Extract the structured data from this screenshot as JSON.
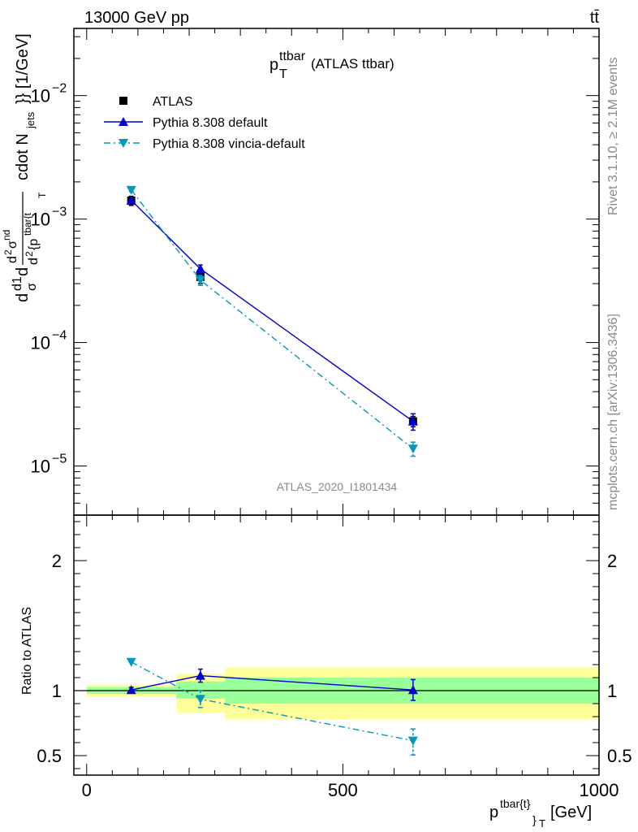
{
  "header": {
    "left": "13000 GeV pp",
    "right": "tt̄"
  },
  "side_text": {
    "rivet": "Rivet 3.1.10, ≥ 2.1M events",
    "mcplots": "mcplots.cern.ch [arXiv:1306.3436]"
  },
  "watermark": "ATLAS_2020_I1801434",
  "chart_data": [
    {
      "type": "line",
      "panel": "main",
      "title": "p_T^{ttbar} (ATLAS ttbar)",
      "title_main": "p",
      "title_sup": "ttbar",
      "title_sub": "T",
      "title_rest": "(ATLAS ttbar)",
      "ylabel": "d1dσ d²σ^{nd} / d² {p^{tbar{t}}_T} cdot N_{jets}}} [1/GeV]",
      "ylabel_parts": {
        "frac_top": "d1",
        "frac_bot": "σ",
        "d_left": "d",
        "num": "d",
        "num_sup": "2",
        "num_sigma": "σ",
        "num_sigma_sup": "nd",
        "den": "d",
        "den_sup": "2",
        "den_p": "{p",
        "den_p_sup": "tbar{t",
        "den_sub": "T",
        "tail": "cdot N",
        "tail_sub": "jets",
        "tail_end": "}} [1/GeV]"
      },
      "yscale": "log",
      "ylim": [
        4e-06,
        0.035
      ],
      "xlim": [
        -25,
        1000
      ],
      "yticks": [
        {
          "value": 0.01,
          "base": "10",
          "exp": "−2"
        },
        {
          "value": 0.001,
          "base": "10",
          "exp": "−3"
        },
        {
          "value": 0.0001,
          "base": "10",
          "exp": "−4"
        },
        {
          "value": 1e-05,
          "base": "10",
          "exp": "−5"
        }
      ],
      "series": [
        {
          "name": "ATLAS",
          "marker": "square",
          "color": "#000000",
          "line": "none",
          "x": [
            87,
            222,
            637
          ],
          "y": [
            0.00141,
            0.00034,
            2.3e-05
          ],
          "yerr_up": [
            0.00012,
            4e-05,
            2.2e-06
          ],
          "yerr_down": [
            0.00012,
            4e-05,
            2.2e-06
          ]
        },
        {
          "name": "Pythia 8.308 default",
          "marker": "triangle-up",
          "color": "#0000cc",
          "line": "solid",
          "x": [
            87,
            222,
            637
          ],
          "y": [
            0.00142,
            0.000395,
            2.3e-05
          ],
          "yerr_up": [
            4e-05,
            3e-05,
            3.5e-06
          ],
          "yerr_down": [
            4e-05,
            3e-05,
            3.5e-06
          ]
        },
        {
          "name": "Pythia 8.308 vincia-default",
          "marker": "triangle-down",
          "color": "#0099bb",
          "line": "dashdot",
          "x": [
            87,
            222,
            637
          ],
          "y": [
            0.00172,
            0.00032,
            1.38e-05
          ],
          "yerr_up": [
            5e-05,
            3e-05,
            1.8e-06
          ],
          "yerr_down": [
            5e-05,
            3e-05,
            1.8e-06
          ]
        }
      ],
      "legend": "top-left"
    },
    {
      "type": "line",
      "panel": "ratio",
      "ylabel": "Ratio to ATLAS",
      "xlabel": "p^{tbar{t}}_T [GeV]",
      "xlabel_parts": {
        "main": "p",
        "sup": "tbar{t}",
        "sub": "}",
        "subsub": "T",
        "unit": "[GeV]"
      },
      "ylim": [
        0.35,
        2.35
      ],
      "xlim": [
        -25,
        1000
      ],
      "yticks": [
        0.5,
        1,
        2
      ],
      "xticks": [
        0,
        500,
        1000
      ],
      "bands": [
        {
          "x0": 0,
          "x1": 175,
          "inner": [
            0.975,
            1.025
          ],
          "outer": [
            0.955,
            1.045
          ]
        },
        {
          "x0": 175,
          "x1": 270,
          "inner": [
            0.94,
            1.07
          ],
          "outer": [
            0.83,
            1.13
          ]
        },
        {
          "x0": 270,
          "x1": 1000,
          "inner": [
            0.9,
            1.1
          ],
          "outer": [
            0.78,
            1.18
          ]
        }
      ],
      "band_colors": {
        "inner": "#99ff99",
        "outer": "#ffff99"
      },
      "reference_line": 1,
      "series": [
        {
          "name": "Pythia 8.308 default",
          "marker": "triangle-up",
          "color": "#0000cc",
          "line": "solid",
          "x": [
            87,
            222,
            637
          ],
          "y": [
            1.005,
            1.115,
            1.005
          ],
          "yerr_up": [
            0.02,
            0.05,
            0.08
          ],
          "yerr_down": [
            0.02,
            0.05,
            0.08
          ]
        },
        {
          "name": "Pythia 8.308 vincia-default",
          "marker": "triangle-down",
          "color": "#0099bb",
          "line": "dashdot",
          "x": [
            87,
            222,
            637
          ],
          "y": [
            1.22,
            0.935,
            0.615
          ],
          "yerr_up": [
            0.0,
            0.065,
            0.09
          ],
          "yerr_down": [
            0.0,
            0.065,
            0.11
          ]
        }
      ]
    }
  ]
}
